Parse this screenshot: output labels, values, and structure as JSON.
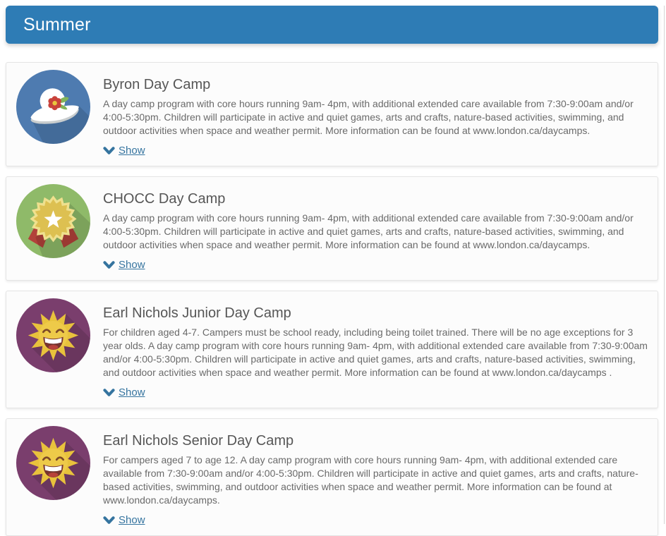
{
  "header": {
    "title": "Summer"
  },
  "colors": {
    "header_bg": "#2e7cb5",
    "link": "#35749f",
    "card_border": "#e4e4e4",
    "card_bg": "#fcfcfc",
    "title_text": "#565656",
    "body_text": "#6a6a6a",
    "panel_border": "#d4d4d4"
  },
  "camps": [
    {
      "title": "Byron Day Camp",
      "description": "A day camp program with core hours running 9am- 4pm, with additional extended care available from 7:30-9:00am and/or 4:00-5:30pm. Children will participate in active and quiet games, arts and crafts, nature-based activities, swimming, and outdoor activities when space and weather permit. More information can be found at www.london.ca/daycamps.",
      "show_label": "Show",
      "icon": "sun-hat"
    },
    {
      "title": "CHOCC Day Camp",
      "description": "A day camp program with core hours running 9am- 4pm, with additional extended care available from 7:30-9:00am and/or 4:00-5:30pm. Children will participate in active and quiet games, arts and crafts, nature-based activities, swimming, and outdoor activities when space and weather permit. More information can be found at www.london.ca/daycamps.",
      "show_label": "Show",
      "icon": "award-badge"
    },
    {
      "title": "Earl Nichols Junior Day Camp",
      "description": "For children aged 4-7. Campers must be school ready, including being toilet trained. There will be no age exceptions for 3 year olds. A day camp program with core hours running 9am- 4pm, with additional extended care available from 7:30-9:00am and/or 4:00-5:30pm. Children will participate in active and quiet games, arts and crafts, nature-based activities, swimming, and outdoor activities when space and weather permit. More information can be found at www.london.ca/daycamps .",
      "show_label": "Show",
      "icon": "smiling-sun"
    },
    {
      "title": "Earl Nichols Senior Day Camp",
      "description": "For campers aged 7 to age 12. A day camp program with core hours running 9am- 4pm, with additional extended care available from 7:30-9:00am and/or 4:00-5:30pm. Children will participate in active and quiet games, arts and crafts, nature-based activities, swimming, and outdoor activities when space and weather permit. More information can be found at www.london.ca/daycamps.",
      "show_label": "Show",
      "icon": "smiling-sun"
    }
  ]
}
